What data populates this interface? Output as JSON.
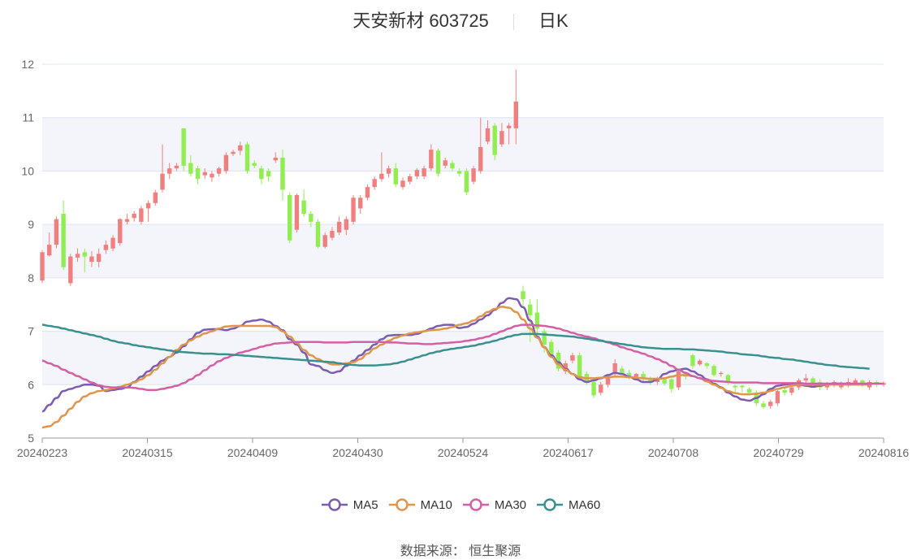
{
  "title": {
    "name": "天安新材 603725",
    "period": "日K"
  },
  "source": "数据来源： 恒生聚源",
  "colors": {
    "up": "#f08080",
    "down": "#90ee50",
    "ma5": "#7b5cb0",
    "ma10": "#e0954a",
    "ma30": "#d45fa6",
    "ma60": "#3a8f8f",
    "grid": "#dde3f0",
    "band": "#f4f5fa"
  },
  "chart_data": {
    "type": "candlestick",
    "ylim": [
      5,
      12
    ],
    "yticks": [
      "5",
      "6",
      "7",
      "8",
      "9",
      "10",
      "11",
      "12"
    ],
    "xticks": [
      "20240223",
      "20240315",
      "20240409",
      "20240430",
      "20240524",
      "20240617",
      "20240708",
      "20240729",
      "20240816"
    ],
    "candles": [
      {
        "o": 7.95,
        "c": 8.48,
        "h": 8.52,
        "l": 7.9
      },
      {
        "o": 8.42,
        "c": 8.62,
        "h": 8.85,
        "l": 8.4
      },
      {
        "o": 8.62,
        "c": 9.1,
        "h": 9.15,
        "l": 8.55
      },
      {
        "o": 9.2,
        "c": 8.2,
        "h": 9.45,
        "l": 8.15
      },
      {
        "o": 7.9,
        "c": 8.4,
        "h": 8.45,
        "l": 7.85
      },
      {
        "o": 8.38,
        "c": 8.45,
        "h": 8.55,
        "l": 8.3
      },
      {
        "o": 8.48,
        "c": 8.4,
        "h": 8.55,
        "l": 8.1
      },
      {
        "o": 8.3,
        "c": 8.4,
        "h": 8.5,
        "l": 8.2
      },
      {
        "o": 8.3,
        "c": 8.45,
        "h": 8.55,
        "l": 8.2
      },
      {
        "o": 8.52,
        "c": 8.62,
        "h": 8.7,
        "l": 8.45
      },
      {
        "o": 8.55,
        "c": 8.75,
        "h": 8.8,
        "l": 8.5
      },
      {
        "o": 8.65,
        "c": 9.1,
        "h": 9.12,
        "l": 8.6
      },
      {
        "o": 9.05,
        "c": 9.1,
        "h": 9.2,
        "l": 9.0
      },
      {
        "o": 9.12,
        "c": 9.2,
        "h": 9.25,
        "l": 9.05
      },
      {
        "o": 9.05,
        "c": 9.3,
        "h": 9.35,
        "l": 9.0
      },
      {
        "o": 9.3,
        "c": 9.4,
        "h": 9.45,
        "l": 9.05
      },
      {
        "o": 9.4,
        "c": 9.6,
        "h": 9.65,
        "l": 9.35
      },
      {
        "o": 9.65,
        "c": 9.95,
        "h": 10.5,
        "l": 9.6
      },
      {
        "o": 9.95,
        "c": 10.05,
        "h": 10.15,
        "l": 9.85
      },
      {
        "o": 10.05,
        "c": 10.1,
        "h": 10.15,
        "l": 10.0
      },
      {
        "o": 10.8,
        "c": 10.1,
        "h": 10.8,
        "l": 10.0
      },
      {
        "o": 10.15,
        "c": 9.95,
        "h": 10.3,
        "l": 9.9
      },
      {
        "o": 10.05,
        "c": 9.85,
        "h": 10.1,
        "l": 9.75
      },
      {
        "o": 9.92,
        "c": 9.98,
        "h": 10.05,
        "l": 9.85
      },
      {
        "o": 9.88,
        "c": 9.95,
        "h": 10.0,
        "l": 9.8
      },
      {
        "o": 9.95,
        "c": 10.05,
        "h": 10.08,
        "l": 9.9
      },
      {
        "o": 10.0,
        "c": 10.3,
        "h": 10.35,
        "l": 9.95
      },
      {
        "o": 10.32,
        "c": 10.36,
        "h": 10.4,
        "l": 10.28
      },
      {
        "o": 10.38,
        "c": 10.48,
        "h": 10.55,
        "l": 10.3
      },
      {
        "o": 10.5,
        "c": 10.0,
        "h": 10.55,
        "l": 9.95
      },
      {
        "o": 10.15,
        "c": 10.1,
        "h": 10.2,
        "l": 10.05
      },
      {
        "o": 10.05,
        "c": 9.85,
        "h": 10.1,
        "l": 9.75
      },
      {
        "o": 10.0,
        "c": 9.9,
        "h": 10.05,
        "l": 9.8
      },
      {
        "o": 10.2,
        "c": 10.25,
        "h": 10.35,
        "l": 10.15
      },
      {
        "o": 10.25,
        "c": 9.65,
        "h": 10.4,
        "l": 9.45
      },
      {
        "o": 9.55,
        "c": 8.7,
        "h": 9.6,
        "l": 8.65
      },
      {
        "o": 8.9,
        "c": 9.55,
        "h": 9.58,
        "l": 8.85
      },
      {
        "o": 9.45,
        "c": 9.2,
        "h": 9.65,
        "l": 9.15
      },
      {
        "o": 9.2,
        "c": 9.05,
        "h": 9.25,
        "l": 8.95
      },
      {
        "o": 9.05,
        "c": 8.58,
        "h": 9.1,
        "l": 8.55
      },
      {
        "o": 8.58,
        "c": 8.8,
        "h": 8.85,
        "l": 8.55
      },
      {
        "o": 8.75,
        "c": 8.88,
        "h": 8.95,
        "l": 8.7
      },
      {
        "o": 8.85,
        "c": 9.05,
        "h": 9.15,
        "l": 8.8
      },
      {
        "o": 8.9,
        "c": 9.1,
        "h": 9.15,
        "l": 8.8
      },
      {
        "o": 9.05,
        "c": 9.5,
        "h": 9.55,
        "l": 9.0
      },
      {
        "o": 9.3,
        "c": 9.5,
        "h": 9.55,
        "l": 9.2
      },
      {
        "o": 9.5,
        "c": 9.7,
        "h": 9.75,
        "l": 9.45
      },
      {
        "o": 9.7,
        "c": 9.85,
        "h": 9.9,
        "l": 9.65
      },
      {
        "o": 9.85,
        "c": 9.95,
        "h": 10.35,
        "l": 9.8
      },
      {
        "o": 9.95,
        "c": 10.05,
        "h": 10.1,
        "l": 9.88
      },
      {
        "o": 10.05,
        "c": 9.75,
        "h": 10.15,
        "l": 9.7
      },
      {
        "o": 9.7,
        "c": 9.82,
        "h": 9.88,
        "l": 9.65
      },
      {
        "o": 9.8,
        "c": 9.9,
        "h": 9.95,
        "l": 9.75
      },
      {
        "o": 9.9,
        "c": 10.02,
        "h": 10.05,
        "l": 9.85
      },
      {
        "o": 9.9,
        "c": 10.05,
        "h": 10.1,
        "l": 9.85
      },
      {
        "o": 10.05,
        "c": 10.4,
        "h": 10.5,
        "l": 10.0
      },
      {
        "o": 10.38,
        "c": 9.95,
        "h": 10.42,
        "l": 9.9
      },
      {
        "o": 10.1,
        "c": 10.2,
        "h": 10.25,
        "l": 10.05
      },
      {
        "o": 10.15,
        "c": 10.05,
        "h": 10.2,
        "l": 10.0
      },
      {
        "o": 10.0,
        "c": 9.95,
        "h": 10.05,
        "l": 9.9
      },
      {
        "o": 10.0,
        "c": 9.6,
        "h": 10.05,
        "l": 9.55
      },
      {
        "o": 9.8,
        "c": 10.05,
        "h": 10.1,
        "l": 9.75
      },
      {
        "o": 10.0,
        "c": 10.45,
        "h": 11.0,
        "l": 9.95
      },
      {
        "o": 10.55,
        "c": 10.8,
        "h": 10.95,
        "l": 10.5
      },
      {
        "o": 10.85,
        "c": 10.3,
        "h": 10.9,
        "l": 10.2
      },
      {
        "o": 10.5,
        "c": 10.75,
        "h": 10.9,
        "l": 10.45
      },
      {
        "o": 10.8,
        "c": 10.85,
        "h": 10.9,
        "l": 10.5
      },
      {
        "o": 10.8,
        "c": 11.3,
        "h": 11.9,
        "l": 10.5
      },
      {
        "o": 7.75,
        "c": 7.6,
        "h": 7.85,
        "l": 7.45
      },
      {
        "o": 7.5,
        "c": 7.3,
        "h": 7.6,
        "l": 6.8
      },
      {
        "o": 7.35,
        "c": 7.05,
        "h": 7.6,
        "l": 6.9
      },
      {
        "o": 7.0,
        "c": 6.75,
        "h": 7.05,
        "l": 6.6
      },
      {
        "o": 6.8,
        "c": 6.55,
        "h": 6.85,
        "l": 6.5
      },
      {
        "o": 6.6,
        "c": 6.3,
        "h": 6.65,
        "l": 6.25
      },
      {
        "o": 6.25,
        "c": 6.4,
        "h": 6.45,
        "l": 6.2
      },
      {
        "o": 6.45,
        "c": 6.55,
        "h": 6.6,
        "l": 6.4
      },
      {
        "o": 6.55,
        "c": 6.15,
        "h": 6.6,
        "l": 6.1
      },
      {
        "o": 6.2,
        "c": 6.05,
        "h": 6.25,
        "l": 6.0
      },
      {
        "o": 6.05,
        "c": 5.8,
        "h": 6.1,
        "l": 5.75
      },
      {
        "o": 5.85,
        "c": 6.0,
        "h": 6.05,
        "l": 5.8
      },
      {
        "o": 6.0,
        "c": 6.15,
        "h": 6.2,
        "l": 5.95
      },
      {
        "o": 6.2,
        "c": 6.4,
        "h": 6.48,
        "l": 6.15
      },
      {
        "o": 6.3,
        "c": 6.22,
        "h": 6.35,
        "l": 6.2
      },
      {
        "o": 6.22,
        "c": 6.15,
        "h": 6.28,
        "l": 6.1
      },
      {
        "o": 6.15,
        "c": 6.2,
        "h": 6.22,
        "l": 6.1
      },
      {
        "o": 6.2,
        "c": 6.1,
        "h": 6.25,
        "l": 6.05
      },
      {
        "o": 6.1,
        "c": 6.05,
        "h": 6.15,
        "l": 6.0
      },
      {
        "o": 6.05,
        "c": 6.1,
        "h": 6.15,
        "l": 6.0
      },
      {
        "o": 6.1,
        "c": 6.02,
        "h": 6.12,
        "l": 5.98
      },
      {
        "o": 6.1,
        "c": 5.92,
        "h": 6.12,
        "l": 5.85
      },
      {
        "o": 5.95,
        "c": 6.25,
        "h": 6.28,
        "l": 5.9
      },
      {
        "o": 6.2,
        "c": 6.15,
        "h": 6.25,
        "l": 6.1
      },
      {
        "o": 6.55,
        "c": 6.35,
        "h": 6.58,
        "l": 6.3
      },
      {
        "o": 6.38,
        "c": 6.45,
        "h": 6.48,
        "l": 6.35
      },
      {
        "o": 6.4,
        "c": 6.35,
        "h": 6.42,
        "l": 6.3
      },
      {
        "o": 6.35,
        "c": 6.18,
        "h": 6.38,
        "l": 6.15
      },
      {
        "o": 6.2,
        "c": 6.22,
        "h": 6.25,
        "l": 6.15
      },
      {
        "o": 6.18,
        "c": 6.05,
        "h": 6.2,
        "l": 6.0
      },
      {
        "o": 5.98,
        "c": 5.95,
        "h": 6.0,
        "l": 5.85
      },
      {
        "o": 5.98,
        "c": 5.95,
        "h": 6.0,
        "l": 5.85
      },
      {
        "o": 5.92,
        "c": 5.85,
        "h": 5.95,
        "l": 5.8
      },
      {
        "o": 5.85,
        "c": 5.65,
        "h": 5.9,
        "l": 5.6
      },
      {
        "o": 5.65,
        "c": 5.58,
        "h": 5.7,
        "l": 5.55
      },
      {
        "o": 5.6,
        "c": 5.68,
        "h": 5.72,
        "l": 5.55
      },
      {
        "o": 5.65,
        "c": 5.88,
        "h": 5.9,
        "l": 5.6
      },
      {
        "o": 5.9,
        "c": 5.85,
        "h": 5.95,
        "l": 5.8
      },
      {
        "o": 5.85,
        "c": 5.95,
        "h": 6.0,
        "l": 5.8
      },
      {
        "o": 5.95,
        "c": 6.08,
        "h": 6.12,
        "l": 5.9
      },
      {
        "o": 6.08,
        "c": 6.12,
        "h": 6.2,
        "l": 6.0
      },
      {
        "o": 6.12,
        "c": 6.02,
        "h": 6.15,
        "l": 5.98
      },
      {
        "o": 6.05,
        "c": 5.95,
        "h": 6.1,
        "l": 5.9
      },
      {
        "o": 5.95,
        "c": 6.02,
        "h": 6.05,
        "l": 5.9
      },
      {
        "o": 6.0,
        "c": 6.05,
        "h": 6.08,
        "l": 5.95
      },
      {
        "o": 5.95,
        "c": 6.02,
        "h": 6.06,
        "l": 5.92
      },
      {
        "o": 5.98,
        "c": 6.05,
        "h": 6.12,
        "l": 5.95
      },
      {
        "o": 6.02,
        "c": 6.08,
        "h": 6.12,
        "l": 5.98
      },
      {
        "o": 6.08,
        "c": 5.98,
        "h": 6.1,
        "l": 5.95
      },
      {
        "o": 5.95,
        "c": 6.05,
        "h": 6.08,
        "l": 5.9
      },
      {
        "o": 6.05,
        "c": 6.0,
        "h": 6.08,
        "l": 5.95
      },
      {
        "o": 6.0,
        "c": 6.03,
        "h": 6.06,
        "l": 5.96
      }
    ],
    "series": [
      {
        "name": "MA5",
        "values": [
          5.5,
          5.62,
          5.75,
          5.88,
          5.92,
          5.96,
          6.0,
          6.0,
          5.98,
          5.88,
          5.9,
          5.92,
          5.95,
          6.05,
          6.15,
          6.25,
          6.35,
          6.45,
          6.52,
          6.6,
          6.72,
          6.85,
          6.97,
          7.03,
          7.04,
          7.04,
          7.02,
          7.05,
          7.1,
          7.18,
          7.2,
          7.22,
          7.18,
          7.1,
          7.02,
          6.85,
          6.75,
          6.6,
          6.38,
          6.35,
          6.27,
          6.22,
          6.25,
          6.35,
          6.45,
          6.55,
          6.65,
          6.75,
          6.85,
          6.92,
          6.93,
          6.93,
          6.93,
          6.95,
          7.0,
          7.05,
          7.1,
          7.12,
          7.12,
          7.06,
          7.08,
          7.14,
          7.22,
          7.3,
          7.4,
          7.53,
          7.62,
          7.6,
          7.45,
          7.2,
          6.9,
          6.7,
          6.55,
          6.42,
          6.3,
          6.2,
          6.1,
          6.05,
          6.08,
          6.12,
          6.18,
          6.22,
          6.2,
          6.15,
          6.1,
          6.05,
          6.05,
          6.1,
          6.2,
          6.25,
          6.28,
          6.3,
          6.25,
          6.18,
          6.1,
          6.02,
          5.95,
          5.85,
          5.78,
          5.72,
          5.7,
          5.75,
          5.82,
          5.92,
          5.98,
          6.0,
          6.02,
          6.0,
          5.98,
          5.96,
          5.98,
          6.0,
          6.02,
          6.02,
          6.01,
          6.0,
          6.0,
          6.0
        ]
      },
      {
        "name": "MA10",
        "values": [
          5.2,
          5.22,
          5.3,
          5.42,
          5.55,
          5.68,
          5.78,
          5.84,
          5.88,
          5.9,
          5.93,
          5.96,
          6.0,
          6.04,
          6.1,
          6.18,
          6.28,
          6.4,
          6.52,
          6.65,
          6.75,
          6.83,
          6.9,
          6.96,
          7.0,
          7.05,
          7.09,
          7.1,
          7.1,
          7.1,
          7.1,
          7.1,
          7.1,
          7.08,
          7.0,
          6.9,
          6.78,
          6.65,
          6.55,
          6.48,
          6.42,
          6.38,
          6.38,
          6.4,
          6.42,
          6.48,
          6.58,
          6.68,
          6.75,
          6.82,
          6.88,
          6.92,
          6.96,
          6.98,
          7.0,
          7.02,
          7.03,
          7.05,
          7.08,
          7.12,
          7.15,
          7.2,
          7.28,
          7.36,
          7.42,
          7.46,
          7.44,
          7.36,
          7.22,
          7.05,
          6.88,
          6.7,
          6.52,
          6.38,
          6.28,
          6.2,
          6.14,
          6.12,
          6.12,
          6.13,
          6.14,
          6.15,
          6.15,
          6.14,
          6.13,
          6.12,
          6.11,
          6.11,
          6.12,
          6.15,
          6.18,
          6.18,
          6.16,
          6.12,
          6.06,
          6.0,
          5.94,
          5.88,
          5.84,
          5.82,
          5.82,
          5.83,
          5.85,
          5.88,
          5.92,
          5.95,
          5.98,
          6.0,
          6.0,
          6.0,
          6.0,
          6.0,
          6.0,
          6.0,
          6.0,
          6.0,
          6.0,
          6.0
        ]
      },
      {
        "name": "MA30",
        "values": [
          6.45,
          6.4,
          6.35,
          6.28,
          6.22,
          6.16,
          6.1,
          6.04,
          5.99,
          5.96,
          5.95,
          5.95,
          5.95,
          5.94,
          5.92,
          5.9,
          5.9,
          5.92,
          5.95,
          5.98,
          6.03,
          6.1,
          6.18,
          6.27,
          6.36,
          6.44,
          6.5,
          6.55,
          6.6,
          6.63,
          6.67,
          6.71,
          6.74,
          6.77,
          6.78,
          6.79,
          6.8,
          6.8,
          6.8,
          6.8,
          6.79,
          6.79,
          6.79,
          6.79,
          6.8,
          6.8,
          6.8,
          6.8,
          6.8,
          6.79,
          6.79,
          6.78,
          6.77,
          6.77,
          6.76,
          6.76,
          6.77,
          6.78,
          6.79,
          6.8,
          6.82,
          6.84,
          6.87,
          6.9,
          6.95,
          7.0,
          7.05,
          7.1,
          7.12,
          7.12,
          7.11,
          7.1,
          7.08,
          7.05,
          7.01,
          6.97,
          6.93,
          6.9,
          6.87,
          6.83,
          6.79,
          6.75,
          6.7,
          6.66,
          6.62,
          6.58,
          6.53,
          6.48,
          6.42,
          6.35,
          6.28,
          6.22,
          6.16,
          6.12,
          6.09,
          6.07,
          6.06,
          6.05,
          6.04,
          6.04,
          6.04,
          6.04,
          6.03,
          6.03,
          6.03,
          6.03,
          6.03,
          6.03,
          6.02,
          6.02,
          6.02,
          6.02,
          6.02,
          6.02,
          6.02,
          6.02,
          6.02,
          6.02,
          6.02,
          6.02
        ]
      },
      {
        "name": "MA60",
        "values": [
          7.12,
          7.1,
          7.08,
          7.05,
          7.02,
          6.99,
          6.96,
          6.93,
          6.9,
          6.86,
          6.82,
          6.79,
          6.77,
          6.74,
          6.72,
          6.7,
          6.68,
          6.66,
          6.64,
          6.62,
          6.61,
          6.6,
          6.59,
          6.58,
          6.58,
          6.57,
          6.57,
          6.56,
          6.55,
          6.54,
          6.53,
          6.52,
          6.51,
          6.5,
          6.49,
          6.48,
          6.47,
          6.46,
          6.45,
          6.44,
          6.43,
          6.42,
          6.4,
          6.38,
          6.37,
          6.36,
          6.36,
          6.36,
          6.37,
          6.38,
          6.4,
          6.43,
          6.47,
          6.51,
          6.55,
          6.59,
          6.62,
          6.65,
          6.67,
          6.69,
          6.71,
          6.73,
          6.76,
          6.79,
          6.82,
          6.86,
          6.9,
          6.93,
          6.95,
          6.95,
          6.95,
          6.94,
          6.93,
          6.92,
          6.91,
          6.9,
          6.88,
          6.86,
          6.84,
          6.82,
          6.8,
          6.78,
          6.76,
          6.74,
          6.72,
          6.7,
          6.69,
          6.68,
          6.67,
          6.67,
          6.67,
          6.66,
          6.66,
          6.65,
          6.64,
          6.63,
          6.62,
          6.6,
          6.59,
          6.57,
          6.56,
          6.55,
          6.53,
          6.51,
          6.5,
          6.48,
          6.47,
          6.45,
          6.43,
          6.41,
          6.39,
          6.37,
          6.36,
          6.34,
          6.33,
          6.32,
          6.31,
          6.3
        ]
      }
    ],
    "legend": [
      "MA5",
      "MA10",
      "MA30",
      "MA60"
    ],
    "legend_position": "bottom",
    "grid": true
  }
}
